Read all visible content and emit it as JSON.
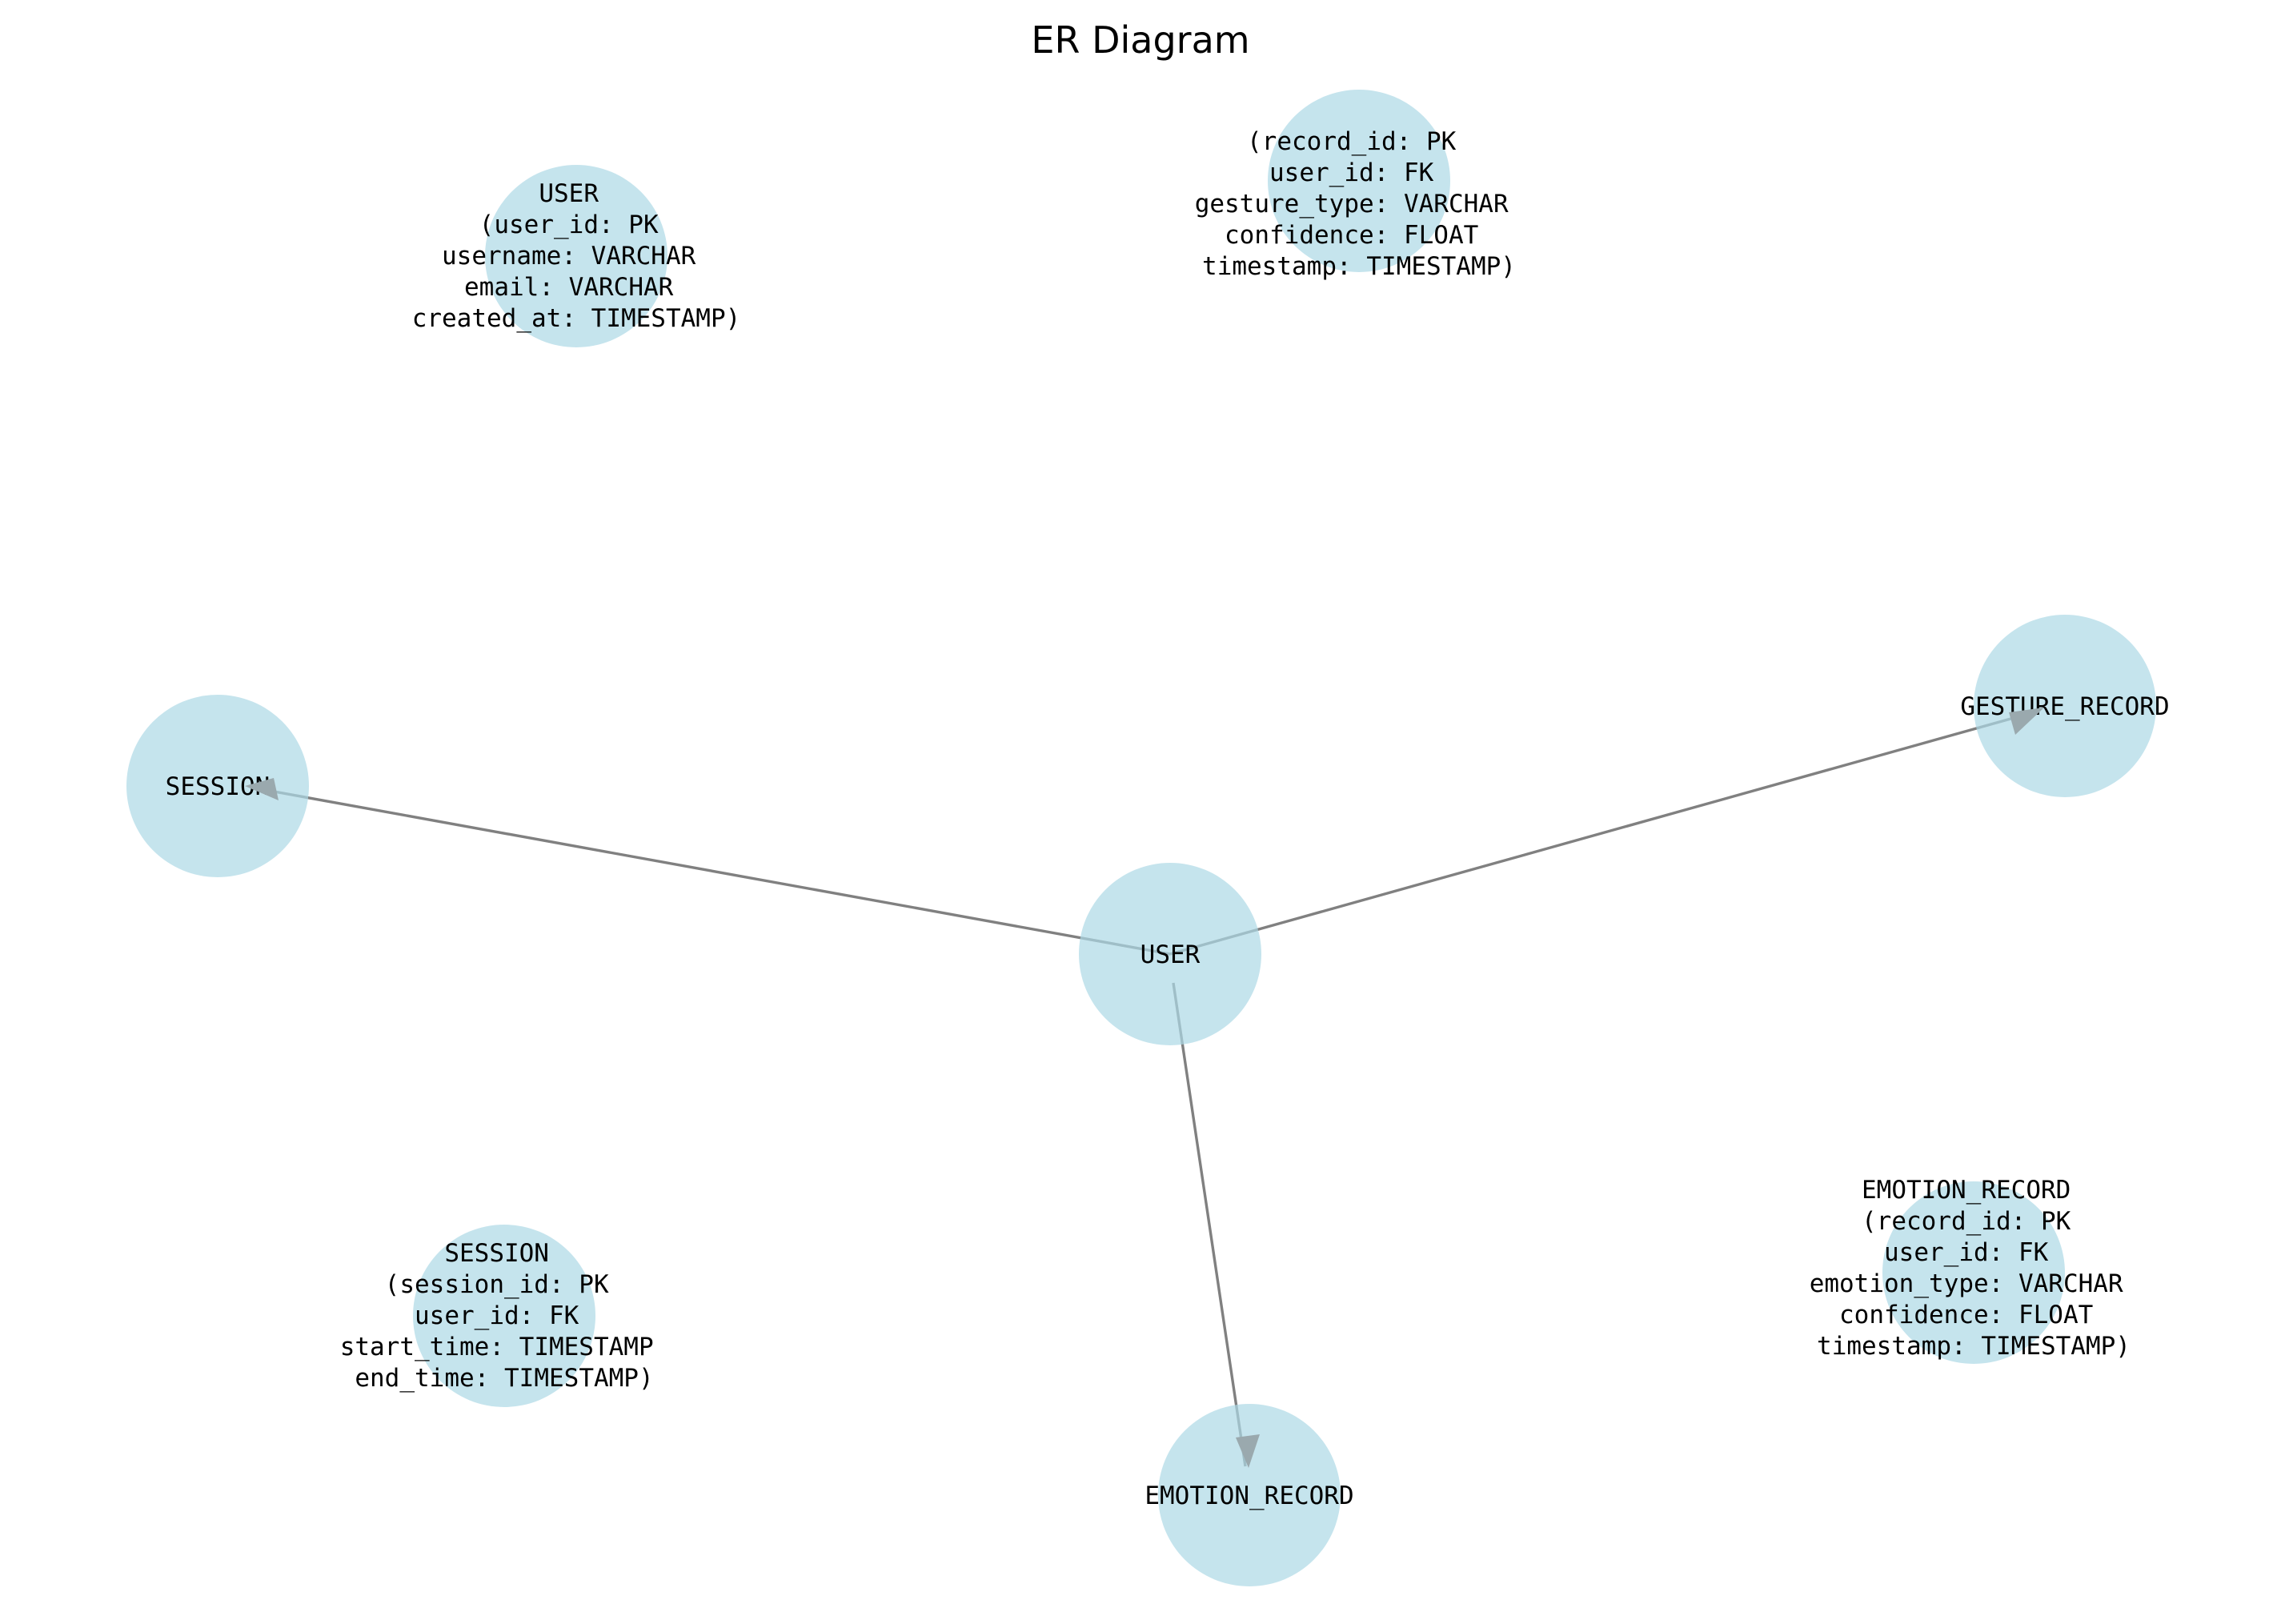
{
  "title": "ER Diagram",
  "colors": {
    "node_fill": "#add8e6",
    "edge": "#808080",
    "arrowhead": "#9aa9ae"
  },
  "nodes": [
    {
      "id": "user",
      "label": "USER"
    },
    {
      "id": "session",
      "label": "SESSION"
    },
    {
      "id": "gesture_record",
      "label": "GESTURE_RECORD"
    },
    {
      "id": "emotion_record",
      "label": "EMOTION_RECORD"
    }
  ],
  "edges": [
    {
      "from": "user",
      "to": "session"
    },
    {
      "from": "user",
      "to": "gesture_record"
    },
    {
      "from": "user",
      "to": "emotion_record"
    }
  ],
  "attribute_nodes": [
    {
      "id": "user_attrs",
      "lines": [
        "USER",
        "(user_id: PK",
        "username: VARCHAR",
        "email: VARCHAR",
        "created_at: TIMESTAMP)"
      ]
    },
    {
      "id": "gesture_attrs",
      "lines": [
        "(record_id: PK",
        "user_id: FK",
        "gesture_type: VARCHAR",
        "confidence: FLOAT",
        "timestamp: TIMESTAMP)"
      ]
    },
    {
      "id": "session_attrs",
      "lines": [
        "SESSION",
        "(session_id: PK",
        "user_id: FK",
        "start_time: TIMESTAMP",
        "end_time: TIMESTAMP)"
      ]
    },
    {
      "id": "emotion_attrs",
      "lines": [
        "EMOTION_RECORD",
        "(record_id: PK",
        "user_id: FK",
        "emotion_type: VARCHAR",
        "confidence: FLOAT",
        "timestamp: TIMESTAMP)"
      ]
    }
  ]
}
